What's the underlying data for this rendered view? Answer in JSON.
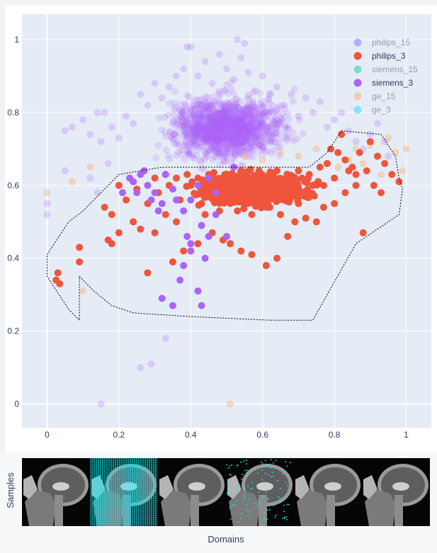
{
  "chart_data": {
    "type": "scatter",
    "x_ticks": [
      "0",
      "0.2",
      "0.4",
      "0.6",
      "0.8",
      "1"
    ],
    "y_ticks": [
      "0",
      "0.2",
      "0.4",
      "0.6",
      "0.8",
      "1"
    ],
    "xlim": [
      -0.07,
      1.07
    ],
    "ylim": [
      -0.065,
      1.07
    ],
    "grid": true,
    "legend_position": "top-right",
    "series": [
      {
        "name": "philips_15",
        "color": "#636efa",
        "visible": false
      },
      {
        "name": "philips_3",
        "color": "#ef553b",
        "visible": true
      },
      {
        "name": "siemens_15",
        "color": "#00cc96",
        "visible": false
      },
      {
        "name": "siemens_3",
        "color": "#ab63fa",
        "visible": true
      },
      {
        "name": "ge_15",
        "color": "#ffa15a",
        "visible": false
      },
      {
        "name": "ge_3",
        "color": "#19d3f3",
        "visible": false
      }
    ],
    "points": {
      "siemens_3_faded": [
        [
          0.0,
          0.55
        ],
        [
          0.0,
          0.52
        ],
        [
          0.05,
          0.64
        ],
        [
          0.05,
          0.75
        ],
        [
          0.07,
          0.76
        ],
        [
          0.1,
          0.78
        ],
        [
          0.12,
          0.74
        ],
        [
          0.14,
          0.8
        ],
        [
          0.15,
          0.72
        ],
        [
          0.16,
          0.8
        ],
        [
          0.17,
          0.66
        ],
        [
          0.18,
          0.76
        ],
        [
          0.2,
          0.73
        ],
        [
          0.22,
          0.79
        ],
        [
          0.24,
          0.77
        ],
        [
          0.26,
          0.85
        ],
        [
          0.28,
          0.82
        ],
        [
          0.3,
          0.88
        ],
        [
          0.32,
          0.84
        ],
        [
          0.34,
          0.87
        ],
        [
          0.36,
          0.9
        ],
        [
          0.38,
          0.92
        ],
        [
          0.39,
          0.98
        ],
        [
          0.4,
          0.98
        ],
        [
          0.42,
          0.9
        ],
        [
          0.44,
          0.94
        ],
        [
          0.46,
          0.88
        ],
        [
          0.48,
          0.96
        ],
        [
          0.5,
          0.92
        ],
        [
          0.52,
          0.89
        ],
        [
          0.54,
          0.95
        ],
        [
          0.56,
          0.91
        ],
        [
          0.58,
          0.86
        ],
        [
          0.6,
          0.9
        ],
        [
          0.62,
          0.85
        ],
        [
          0.64,
          0.87
        ],
        [
          0.66,
          0.82
        ],
        [
          0.68,
          0.85
        ],
        [
          0.7,
          0.79
        ],
        [
          0.72,
          0.84
        ],
        [
          0.74,
          0.8
        ],
        [
          0.76,
          0.83
        ],
        [
          0.78,
          0.76
        ],
        [
          0.8,
          0.78
        ],
        [
          0.82,
          0.8
        ],
        [
          0.84,
          0.75
        ],
        [
          0.86,
          0.72
        ],
        [
          0.88,
          0.7
        ],
        [
          0.9,
          0.74
        ],
        [
          0.92,
          0.77
        ],
        [
          0.94,
          0.72
        ],
        [
          0.95,
          0.68
        ],
        [
          0.55,
          0.99
        ],
        [
          0.53,
          1.0
        ],
        [
          0.26,
          0.1
        ],
        [
          0.29,
          0.11
        ],
        [
          0.33,
          0.18
        ],
        [
          0.15,
          0.0
        ],
        [
          0.14,
          0.58
        ],
        [
          0.12,
          0.62
        ]
      ],
      "philips_3": [
        [
          0.03,
          0.36
        ],
        [
          0.025,
          0.34
        ],
        [
          0.035,
          0.33
        ],
        [
          0.09,
          0.43
        ],
        [
          0.09,
          0.39
        ],
        [
          0.17,
          0.45
        ],
        [
          0.18,
          0.44
        ],
        [
          0.2,
          0.47
        ],
        [
          0.16,
          0.54
        ],
        [
          0.18,
          0.52
        ],
        [
          0.28,
          0.36
        ],
        [
          0.3,
          0.47
        ],
        [
          0.35,
          0.39
        ],
        [
          0.38,
          0.42
        ],
        [
          0.42,
          0.44
        ],
        [
          0.46,
          0.47
        ],
        [
          0.49,
          0.45
        ],
        [
          0.51,
          0.44
        ],
        [
          0.54,
          0.42
        ],
        [
          0.57,
          0.41
        ],
        [
          0.61,
          0.38
        ],
        [
          0.64,
          0.4
        ],
        [
          0.67,
          0.46
        ],
        [
          0.69,
          0.5
        ],
        [
          0.72,
          0.51
        ],
        [
          0.75,
          0.5
        ],
        [
          0.77,
          0.54
        ],
        [
          0.8,
          0.55
        ],
        [
          0.83,
          0.58
        ],
        [
          0.85,
          0.65
        ],
        [
          0.87,
          0.69
        ],
        [
          0.9,
          0.72
        ],
        [
          0.92,
          0.68
        ],
        [
          0.94,
          0.66
        ],
        [
          0.96,
          0.63
        ],
        [
          0.98,
          0.61
        ],
        [
          0.88,
          0.47
        ],
        [
          0.84,
          0.64
        ],
        [
          0.82,
          0.74
        ],
        [
          0.79,
          0.7
        ],
        [
          0.86,
          0.6
        ],
        [
          0.74,
          0.6
        ],
        [
          0.71,
          0.62
        ],
        [
          0.68,
          0.58
        ],
        [
          0.66,
          0.56
        ],
        [
          0.63,
          0.59
        ],
        [
          0.6,
          0.57
        ],
        [
          0.58,
          0.61
        ],
        [
          0.55,
          0.56
        ],
        [
          0.52,
          0.6
        ],
        [
          0.49,
          0.57
        ],
        [
          0.46,
          0.59
        ],
        [
          0.43,
          0.55
        ],
        [
          0.4,
          0.6
        ],
        [
          0.37,
          0.56
        ],
        [
          0.34,
          0.6
        ],
        [
          0.31,
          0.58
        ],
        [
          0.28,
          0.55
        ],
        [
          0.25,
          0.59
        ],
        [
          0.22,
          0.56
        ],
        [
          0.2,
          0.6
        ],
        [
          0.24,
          0.5
        ],
        [
          0.26,
          0.48
        ],
        [
          0.33,
          0.52
        ],
        [
          0.36,
          0.5
        ],
        [
          0.44,
          0.52
        ],
        [
          0.48,
          0.53
        ],
        [
          0.53,
          0.53
        ],
        [
          0.57,
          0.52
        ],
        [
          0.62,
          0.54
        ],
        [
          0.65,
          0.52
        ],
        [
          0.7,
          0.55
        ],
        [
          0.73,
          0.57
        ],
        [
          0.77,
          0.6
        ],
        [
          0.8,
          0.62
        ],
        [
          0.83,
          0.67
        ],
        [
          0.86,
          0.63
        ],
        [
          0.89,
          0.64
        ],
        [
          0.91,
          0.6
        ],
        [
          0.93,
          0.58
        ],
        [
          0.51,
          0.63
        ],
        [
          0.54,
          0.64
        ],
        [
          0.56,
          0.62
        ],
        [
          0.59,
          0.64
        ],
        [
          0.61,
          0.62
        ],
        [
          0.64,
          0.64
        ],
        [
          0.67,
          0.61
        ],
        [
          0.7,
          0.64
        ],
        [
          0.73,
          0.63
        ],
        [
          0.76,
          0.65
        ],
        [
          0.78,
          0.66
        ],
        [
          0.81,
          0.69
        ],
        [
          0.45,
          0.63
        ],
        [
          0.42,
          0.62
        ],
        [
          0.39,
          0.63
        ],
        [
          0.36,
          0.62
        ],
        [
          0.33,
          0.63
        ],
        [
          0.3,
          0.62
        ],
        [
          0.27,
          0.64
        ]
      ],
      "siemens_3": [
        [
          0.21,
          0.58
        ],
        [
          0.24,
          0.61
        ],
        [
          0.26,
          0.63
        ],
        [
          0.28,
          0.6
        ],
        [
          0.3,
          0.58
        ],
        [
          0.32,
          0.55
        ],
        [
          0.35,
          0.59
        ],
        [
          0.38,
          0.53
        ],
        [
          0.4,
          0.56
        ],
        [
          0.42,
          0.6
        ],
        [
          0.45,
          0.62
        ],
        [
          0.47,
          0.58
        ],
        [
          0.33,
          0.63
        ],
        [
          0.27,
          0.64
        ],
        [
          0.23,
          0.62
        ],
        [
          0.39,
          0.46
        ],
        [
          0.4,
          0.44
        ],
        [
          0.4,
          0.42
        ],
        [
          0.38,
          0.38
        ],
        [
          0.37,
          0.34
        ],
        [
          0.35,
          0.27
        ],
        [
          0.32,
          0.29
        ],
        [
          0.42,
          0.31
        ],
        [
          0.43,
          0.27
        ],
        [
          0.44,
          0.4
        ],
        [
          0.45,
          0.46
        ],
        [
          0.43,
          0.49
        ],
        [
          0.47,
          0.52
        ],
        [
          0.5,
          0.46
        ],
        [
          0.52,
          0.65
        ],
        [
          0.31,
          0.53
        ],
        [
          0.36,
          0.56
        ],
        [
          0.25,
          0.58
        ],
        [
          0.29,
          0.56
        ]
      ],
      "ge_15": [
        [
          0.81,
          0.65
        ],
        [
          0.84,
          0.67
        ],
        [
          0.86,
          0.7
        ],
        [
          0.88,
          0.66
        ],
        [
          0.9,
          0.71
        ],
        [
          0.93,
          0.63
        ],
        [
          0.95,
          0.73
        ],
        [
          0.97,
          0.69
        ],
        [
          0.99,
          0.64
        ],
        [
          1.0,
          0.7
        ],
        [
          0.07,
          0.61
        ],
        [
          0.0,
          0.58
        ],
        [
          0.1,
          0.31
        ],
        [
          0.51,
          0.0
        ],
        [
          0.12,
          0.65
        ],
        [
          0.55,
          0.68
        ],
        [
          0.6,
          0.67
        ],
        [
          0.65,
          0.69
        ],
        [
          0.7,
          0.68
        ],
        [
          0.75,
          0.7
        ]
      ]
    },
    "selection_polygon": [
      [
        0.0,
        0.41
      ],
      [
        0.06,
        0.5
      ],
      [
        0.1,
        0.53
      ],
      [
        0.13,
        0.56
      ],
      [
        0.2,
        0.63
      ],
      [
        0.32,
        0.65
      ],
      [
        0.49,
        0.65
      ],
      [
        0.61,
        0.65
      ],
      [
        0.73,
        0.65
      ],
      [
        0.78,
        0.69
      ],
      [
        0.82,
        0.75
      ],
      [
        0.93,
        0.74
      ],
      [
        0.97,
        0.68
      ],
      [
        0.98,
        0.62
      ],
      [
        0.99,
        0.59
      ],
      [
        0.98,
        0.52
      ],
      [
        0.86,
        0.44
      ],
      [
        0.74,
        0.23
      ],
      [
        0.62,
        0.23
      ],
      [
        0.4,
        0.24
      ],
      [
        0.24,
        0.25
      ],
      [
        0.18,
        0.27
      ],
      [
        0.13,
        0.31
      ],
      [
        0.09,
        0.35
      ],
      [
        0.09,
        0.23
      ],
      [
        0.06,
        0.26
      ],
      [
        0.0,
        0.35
      ],
      [
        0.0,
        0.41
      ]
    ]
  },
  "bottom_panel": {
    "y_label": "Samples",
    "x_label": "Domains",
    "thumbnails": [
      {
        "name": "mri-sample-1",
        "overlay": "none"
      },
      {
        "name": "mri-sample-2",
        "overlay": "cyan-grid"
      },
      {
        "name": "mri-sample-3",
        "overlay": "none"
      },
      {
        "name": "mri-sample-4",
        "overlay": "cyan-dots"
      },
      {
        "name": "mri-sample-5",
        "overlay": "none"
      },
      {
        "name": "mri-sample-6",
        "overlay": "none"
      }
    ]
  }
}
